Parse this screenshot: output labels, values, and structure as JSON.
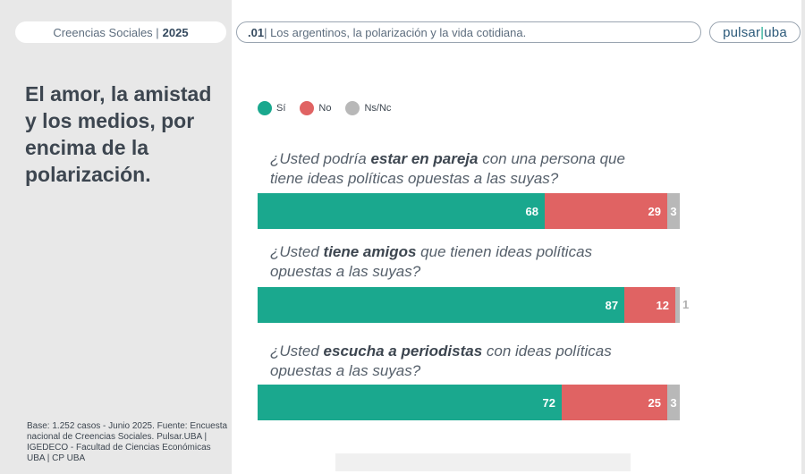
{
  "header": {
    "section": "Creencias Sociales |",
    "year": "2025",
    "title_prefix": ".01",
    "title_rest": "| Los argentinos, la polarización y la vida cotidiana.",
    "logo_left": "pulsar",
    "logo_sep": "|",
    "logo_right": "uba"
  },
  "headline": "El amor, la amistad y los medios, por encima de la polarización.",
  "footnote": "Base: 1.252 casos - Junio 2025. Fuente: Encuesta nacional de Creencias Sociales. Pulsar.UBA | IGEDECO - Facultad de Ciencias Económicas UBA | CP UBA",
  "colors": {
    "si": "#1aa88e",
    "no": "#e06363",
    "nsnc": "#b8b8b8"
  },
  "chart_data": {
    "type": "bar",
    "orientation": "horizontal-stacked",
    "legend": [
      "Sí",
      "No",
      "Ns/Nc"
    ],
    "legend_position": "top-left",
    "questions": [
      {
        "pre": "¿Usted podría ",
        "em": "estar en pareja",
        "post": " con una persona que tiene ideas políticas opuestas a las suyas?",
        "values": {
          "si": 68,
          "no": 29,
          "nsnc": 3
        }
      },
      {
        "pre": "¿Usted ",
        "em": "tiene amigos",
        "post": " que tienen ideas políticas opuestas a las suyas?",
        "values": {
          "si": 87,
          "no": 12,
          "nsnc": 1
        }
      },
      {
        "pre": "¿Usted ",
        "em": "escucha a periodistas",
        "post": " con ideas políticas opuestas a las suyas?",
        "values": {
          "si": 72,
          "no": 25,
          "nsnc": 3
        }
      }
    ]
  }
}
